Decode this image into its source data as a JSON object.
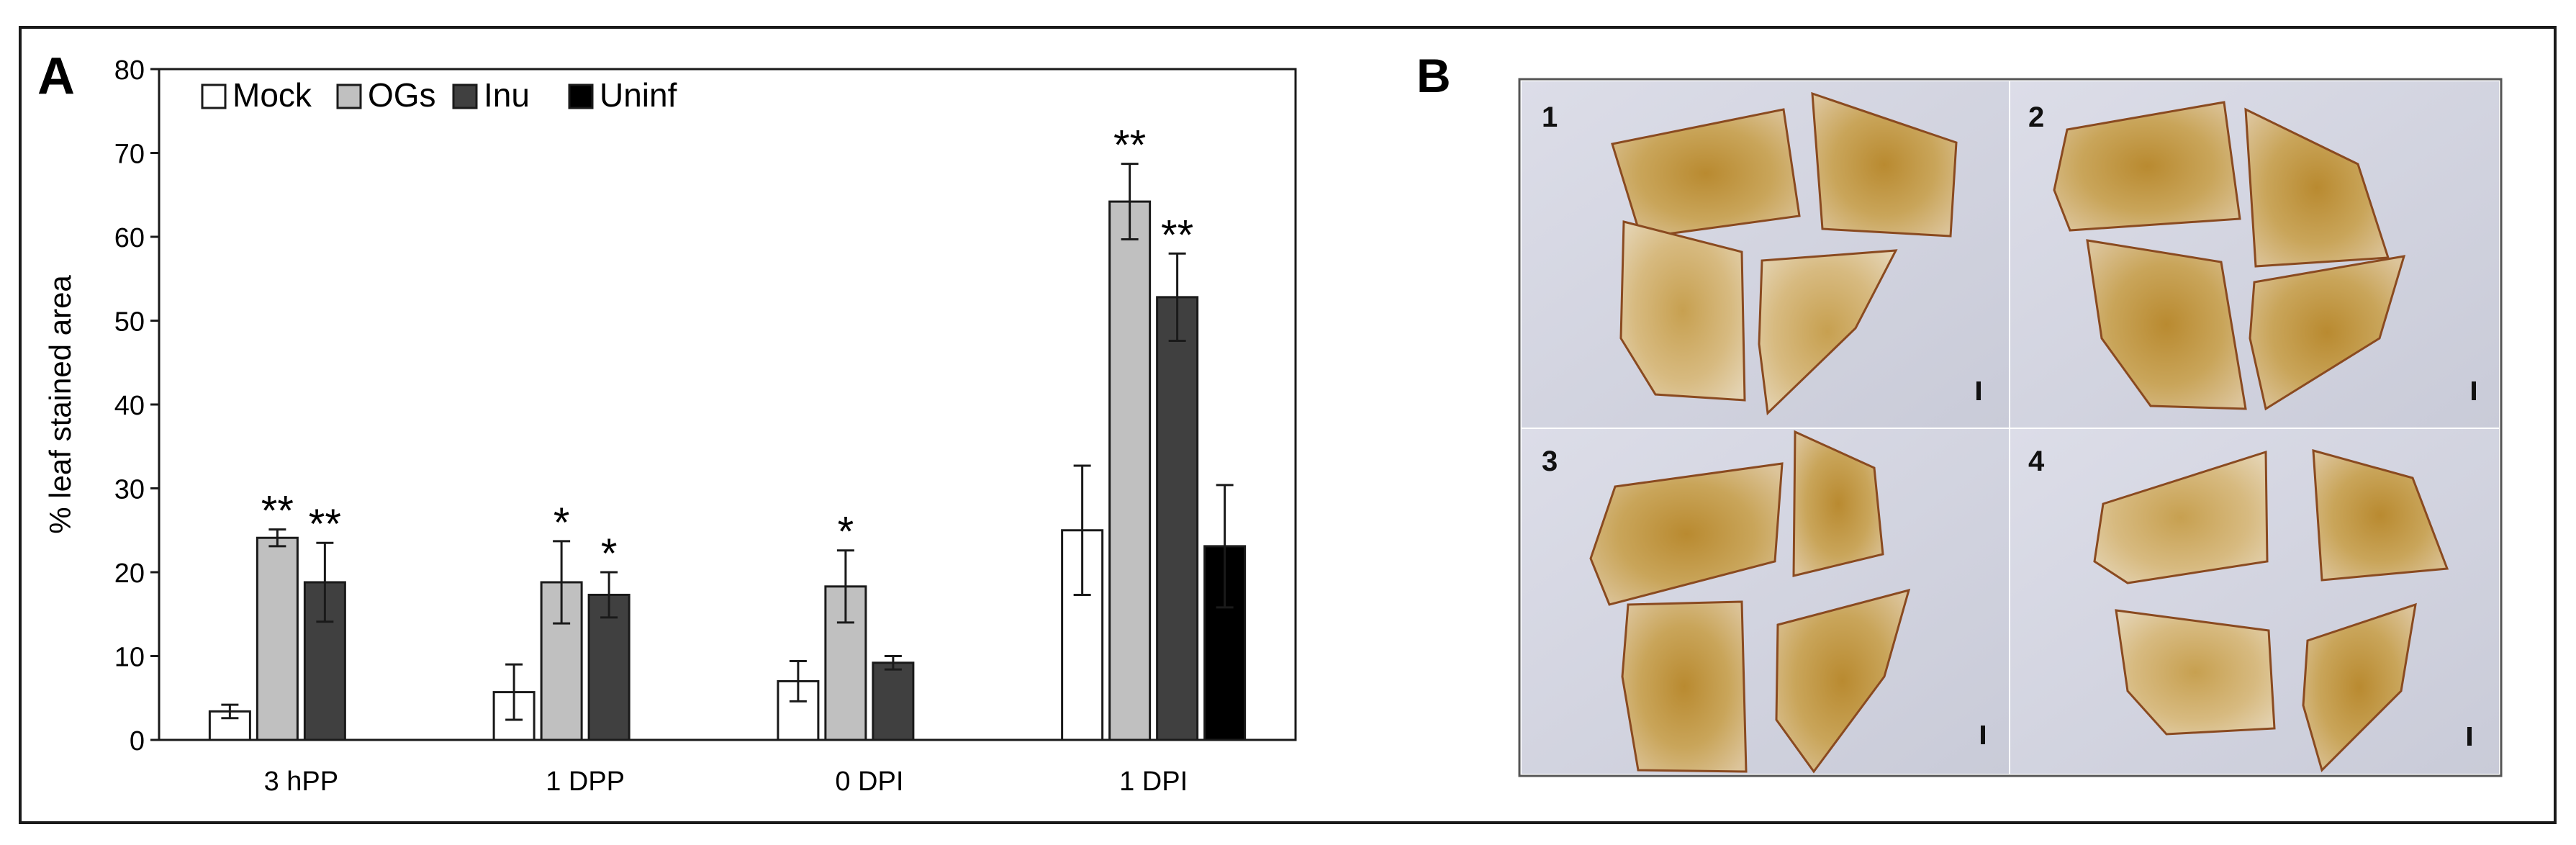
{
  "panel_a_label": "A",
  "panel_b_label": "B",
  "chart_data": {
    "type": "bar",
    "title": "",
    "xlabel": "",
    "ylabel": "% leaf stained area",
    "ylim": [
      0,
      80
    ],
    "yticks": [
      0,
      10,
      20,
      30,
      40,
      50,
      60,
      70,
      80
    ],
    "grid": false,
    "legend_position": "top-left",
    "categories": [
      "3 hPP",
      "1 DPP",
      "0 DPI",
      "1 DPI"
    ],
    "series": [
      {
        "name": "Mock",
        "color": "#ffffff",
        "values": [
          3.4,
          5.7,
          7.0,
          25.0
        ],
        "errors": [
          0.8,
          3.3,
          2.4,
          7.7
        ],
        "significance": [
          "",
          "",
          "",
          ""
        ]
      },
      {
        "name": "OGs",
        "color": "#c0c0c0",
        "values": [
          24.1,
          18.8,
          18.3,
          64.2
        ],
        "errors": [
          1.0,
          4.9,
          4.3,
          4.5
        ],
        "significance": [
          "**",
          "*",
          "*",
          "**"
        ]
      },
      {
        "name": "Inu",
        "color": "#404040",
        "values": [
          18.8,
          17.3,
          9.2,
          52.8
        ],
        "errors": [
          4.7,
          2.7,
          0.8,
          5.2
        ],
        "significance": [
          "**",
          "*",
          "",
          "**"
        ]
      },
      {
        "name": "Uninf",
        "color": "#000000",
        "values": [
          null,
          null,
          null,
          23.1
        ],
        "errors": [
          null,
          null,
          null,
          7.3
        ],
        "significance": [
          "",
          "",
          "",
          ""
        ]
      }
    ]
  },
  "photos": [
    {
      "label": "1"
    },
    {
      "label": "2"
    },
    {
      "label": "3"
    },
    {
      "label": "4"
    }
  ]
}
